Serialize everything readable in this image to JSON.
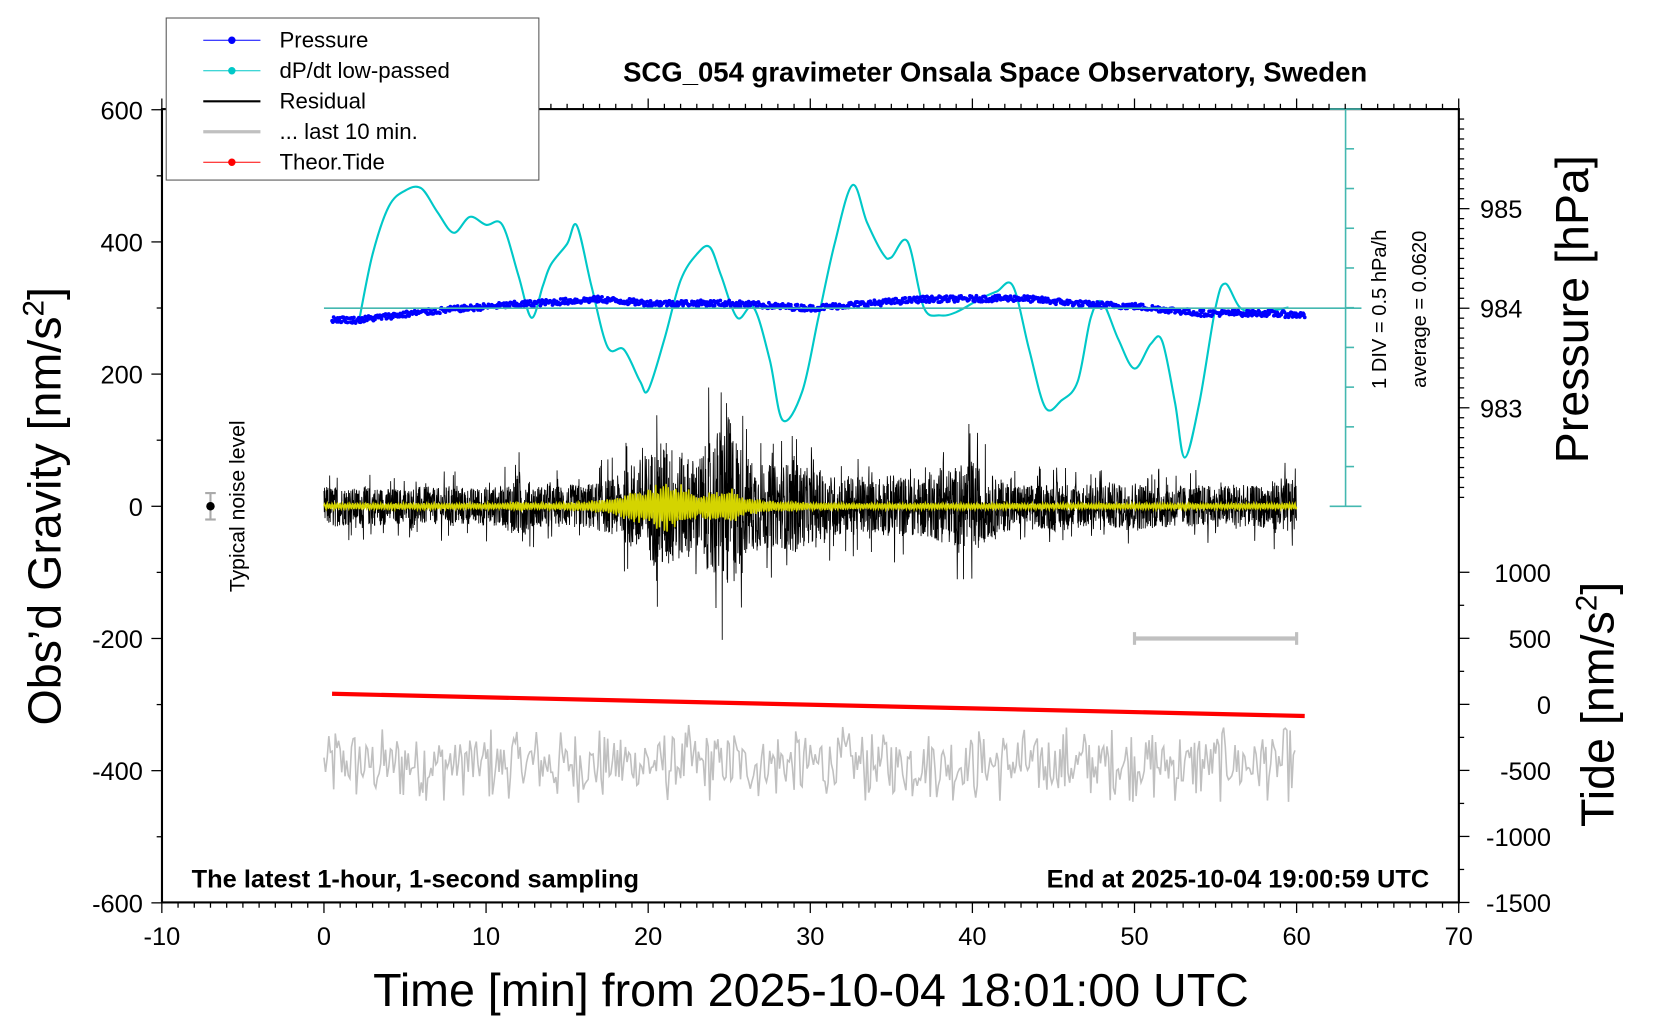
{
  "chart_data": {
    "type": "line",
    "title": "SCG_054 gravimeter Onsala Space Observatory, Sweden",
    "xlabel": "Time [min] from 2025-10-04 18:01:00 UTC",
    "ylabel": {
      "main": "Obs’d Gravity [nm/s",
      "sup": "2",
      "end": "]"
    },
    "y2label": "Pressure [hPa]",
    "y3label": {
      "main": "Tide [nm/s",
      "sup": "2",
      "end": "]"
    },
    "xlim": [
      -10,
      70
    ],
    "ylim": [
      -600,
      600
    ],
    "y2lim_visible_ticks": [
      983,
      984,
      985
    ],
    "y3lim": [
      -1500,
      1000
    ],
    "xticks": [
      "-10",
      "0",
      "10",
      "20",
      "30",
      "40",
      "50",
      "60",
      "70"
    ],
    "yticks": [
      "600",
      "400",
      "200",
      "0",
      "-200",
      "-400",
      "-600"
    ],
    "y2ticks": [
      "985",
      "984",
      "983"
    ],
    "y3ticks": [
      "1000",
      "500",
      "0",
      "-500",
      "-1000",
      "-1500"
    ],
    "grid": false,
    "legend_position": "top-left",
    "legend": [
      {
        "label": "Pressure",
        "color": "#0000ff",
        "marker": true
      },
      {
        "label": "dP/dt low-passed",
        "color": "#00c8c8",
        "marker": true
      },
      {
        "label": "Residual",
        "color": "#000000",
        "marker": false
      },
      {
        "label": "... last 10 min.",
        "color": "#c0c0c0",
        "marker": false
      },
      {
        "label": "Theor.Tide",
        "color": "#ff0000",
        "marker": true
      }
    ],
    "annotations": {
      "bottom_left": "The latest 1-hour, 1-second sampling",
      "bottom_right": "End at 2025-10-04 19:00:59 UTC",
      "noise_label": "Typical noise level",
      "dpdt_scale": "1 DIV = 0.5 hPa/h",
      "dpdt_average": "average = 0.0620"
    },
    "noise_level": {
      "x": -7,
      "center": 0,
      "halfwidth": 20
    },
    "last10_scale_bar": {
      "x": [
        50,
        60
      ],
      "y": -200
    },
    "dpdt_axis": {
      "div": 0.5,
      "divisions": 10,
      "center_pressure": 984
    },
    "series": [
      {
        "name": "Pressure",
        "axis": "pressure_hPa",
        "x": [
          0.5,
          2,
          5,
          8,
          12,
          17,
          20,
          25,
          30,
          33,
          37,
          43,
          47,
          50,
          54,
          58,
          60.5
        ],
        "y": [
          983.89,
          983.88,
          983.94,
          983.99,
          984.04,
          984.09,
          984.05,
          984.05,
          984.0,
          984.04,
          984.09,
          984.1,
          984.04,
          984.02,
          983.95,
          983.95,
          983.93
        ]
      },
      {
        "name": "dP/dt low-passed",
        "axis": "hPa_per_h_relative_to_average",
        "x": [
          2.2,
          3,
          4,
          5,
          6,
          7,
          8,
          9,
          10,
          11,
          12,
          12.8,
          13.5,
          14,
          15,
          15.6,
          16.5,
          17.5,
          18.5,
          19.5,
          20,
          21,
          22,
          23,
          23.8,
          24.5,
          25.5,
          26.5,
          27.5,
          28.3,
          29.5,
          30.5,
          31.5,
          32.6,
          33.5,
          34.5,
          35,
          36,
          37,
          38,
          39,
          40.5,
          41.5,
          42.5,
          43.5,
          44.5,
          45.5,
          46.5,
          47.3,
          48,
          49,
          50,
          51,
          51.7,
          52.5,
          53.1,
          54,
          55,
          55.6,
          56.5,
          57.5,
          58.5,
          59.5
        ],
        "y": [
          -0.12,
          0.68,
          1.28,
          1.48,
          1.51,
          1.21,
          0.95,
          1.15,
          1.05,
          1.05,
          0.41,
          -0.12,
          0.28,
          0.55,
          0.81,
          1.04,
          0.28,
          -0.49,
          -0.52,
          -0.92,
          -1.03,
          -0.39,
          0.35,
          0.68,
          0.77,
          0.41,
          -0.12,
          0.01,
          -0.65,
          -1.41,
          -1.05,
          -0.12,
          0.81,
          1.55,
          1.08,
          0.68,
          0.64,
          0.84,
          0.01,
          -0.09,
          -0.05,
          0.12,
          0.21,
          0.28,
          -0.52,
          -1.25,
          -1.16,
          -0.92,
          -0.12,
          0.08,
          -0.39,
          -0.76,
          -0.45,
          -0.41,
          -1.19,
          -1.88,
          -1.19,
          0.01,
          0.31,
          0.01,
          -0.05,
          -0.03,
          0.01
        ]
      },
      {
        "name": "Residual",
        "axis": "gravity_nm_s2",
        "x_range": [
          0,
          60
        ],
        "envelope_per_minute": [
          55,
          55,
          50,
          55,
          50,
          50,
          55,
          50,
          60,
          50,
          55,
          55,
          90,
          60,
          55,
          60,
          60,
          70,
          80,
          120,
          150,
          190,
          150,
          130,
          200,
          250,
          140,
          120,
          110,
          130,
          100,
          90,
          80,
          80,
          70,
          90,
          80,
          80,
          100,
          110,
          130,
          90,
          70,
          60,
          60,
          70,
          65,
          60,
          70,
          60,
          70,
          60,
          60,
          55,
          60,
          55,
          60,
          55,
          60,
          80,
          70
        ]
      },
      {
        "name": "Residual filtered",
        "axis": "gravity_nm_s2",
        "x_range": [
          0,
          60
        ],
        "envelope_per_minute": [
          5,
          5,
          5,
          5,
          5,
          5,
          5,
          5,
          5,
          5,
          5,
          5,
          8,
          5,
          5,
          6,
          8,
          10,
          15,
          25,
          30,
          40,
          35,
          20,
          25,
          30,
          15,
          10,
          8,
          8,
          6,
          6,
          5,
          5,
          5,
          5,
          5,
          5,
          5,
          5,
          5,
          5,
          5,
          5,
          5,
          5,
          5,
          5,
          5,
          5,
          5,
          5,
          5,
          5,
          5,
          5,
          5,
          5,
          5,
          5,
          5
        ]
      },
      {
        "name": "... last 10 min.",
        "axis": "tide_nm_s2",
        "x_range": [
          0,
          60
        ],
        "center": -450,
        "amplitude": 300
      },
      {
        "name": "Theor.Tide",
        "axis": "tide_nm_s2",
        "x": [
          0.5,
          60.5
        ],
        "y": [
          80,
          -88
        ]
      }
    ]
  },
  "colors": {
    "pressure": "#0000ff",
    "dpdt": "#00c8c8",
    "dpdt_axis": "#44b8b0",
    "residual": "#000000",
    "filtered": "#d4d400",
    "last10": "#c0c0c0",
    "tide": "#ff0000"
  }
}
